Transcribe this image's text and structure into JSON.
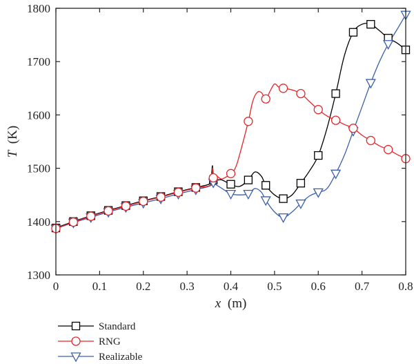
{
  "chart_data": {
    "type": "line",
    "title": "",
    "xlabel": {
      "symbol": "x",
      "unit": "(m)"
    },
    "ylabel": {
      "symbol": "T",
      "unit": "(K)"
    },
    "xlim": [
      0,
      0.8
    ],
    "ylim": [
      1300,
      1800
    ],
    "xticks": [
      0,
      0.1,
      0.2,
      0.3,
      0.4,
      0.5,
      0.6,
      0.7,
      0.8
    ],
    "xtick_labels": [
      "0",
      "0.1",
      "0.2",
      "0.3",
      "0.4",
      "0.5",
      "0.6",
      "0.7",
      "0.8"
    ],
    "yticks": [
      1300,
      1400,
      1500,
      1600,
      1700,
      1800
    ],
    "ytick_labels": [
      "1300",
      "1400",
      "1500",
      "1600",
      "1700",
      "1800"
    ],
    "grid": false,
    "legend_position": "bottom-left",
    "series": [
      {
        "name": "Standard",
        "color": "#000000",
        "marker": "square",
        "curve": [
          [
            0,
            1388
          ],
          [
            0.04,
            1400
          ],
          [
            0.08,
            1411
          ],
          [
            0.12,
            1421
          ],
          [
            0.16,
            1430
          ],
          [
            0.2,
            1439
          ],
          [
            0.24,
            1447
          ],
          [
            0.28,
            1456
          ],
          [
            0.32,
            1464
          ],
          [
            0.35,
            1470
          ],
          [
            0.355,
            1478
          ],
          [
            0.358,
            1505
          ],
          [
            0.36,
            1478
          ],
          [
            0.37,
            1478
          ],
          [
            0.38,
            1478
          ],
          [
            0.4,
            1470
          ],
          [
            0.42,
            1466
          ],
          [
            0.44,
            1478
          ],
          [
            0.455,
            1493
          ],
          [
            0.47,
            1485
          ],
          [
            0.48,
            1468
          ],
          [
            0.5,
            1450
          ],
          [
            0.52,
            1443
          ],
          [
            0.54,
            1450
          ],
          [
            0.56,
            1472
          ],
          [
            0.58,
            1495
          ],
          [
            0.6,
            1524
          ],
          [
            0.62,
            1575
          ],
          [
            0.64,
            1640
          ],
          [
            0.66,
            1712
          ],
          [
            0.68,
            1755
          ],
          [
            0.7,
            1770
          ],
          [
            0.72,
            1770
          ],
          [
            0.74,
            1758
          ],
          [
            0.76,
            1744
          ],
          [
            0.78,
            1735
          ],
          [
            0.8,
            1722
          ]
        ],
        "markers": [
          [
            0,
            1388
          ],
          [
            0.04,
            1400
          ],
          [
            0.08,
            1411
          ],
          [
            0.12,
            1421
          ],
          [
            0.16,
            1430
          ],
          [
            0.2,
            1439
          ],
          [
            0.24,
            1447
          ],
          [
            0.28,
            1456
          ],
          [
            0.32,
            1464
          ],
          [
            0.36,
            1478
          ],
          [
            0.4,
            1470
          ],
          [
            0.44,
            1478
          ],
          [
            0.48,
            1468
          ],
          [
            0.52,
            1443
          ],
          [
            0.56,
            1472
          ],
          [
            0.6,
            1524
          ],
          [
            0.64,
            1640
          ],
          [
            0.68,
            1755
          ],
          [
            0.72,
            1770
          ],
          [
            0.76,
            1744
          ],
          [
            0.8,
            1722
          ]
        ]
      },
      {
        "name": "RNG",
        "color": "#e8242a",
        "marker": "circle",
        "curve": [
          [
            0,
            1387
          ],
          [
            0.04,
            1399
          ],
          [
            0.08,
            1410
          ],
          [
            0.12,
            1420
          ],
          [
            0.16,
            1429
          ],
          [
            0.2,
            1438
          ],
          [
            0.24,
            1446
          ],
          [
            0.28,
            1455
          ],
          [
            0.32,
            1463
          ],
          [
            0.355,
            1470
          ],
          [
            0.358,
            1500
          ],
          [
            0.362,
            1482
          ],
          [
            0.37,
            1484
          ],
          [
            0.38,
            1480
          ],
          [
            0.4,
            1490
          ],
          [
            0.41,
            1500
          ],
          [
            0.42,
            1525
          ],
          [
            0.44,
            1588
          ],
          [
            0.45,
            1625
          ],
          [
            0.46,
            1642
          ],
          [
            0.47,
            1642
          ],
          [
            0.48,
            1630
          ],
          [
            0.49,
            1645
          ],
          [
            0.5,
            1658
          ],
          [
            0.51,
            1652
          ],
          [
            0.52,
            1650
          ],
          [
            0.54,
            1647
          ],
          [
            0.56,
            1640
          ],
          [
            0.58,
            1625
          ],
          [
            0.6,
            1610
          ],
          [
            0.62,
            1598
          ],
          [
            0.64,
            1590
          ],
          [
            0.66,
            1582
          ],
          [
            0.68,
            1575
          ],
          [
            0.7,
            1562
          ],
          [
            0.72,
            1552
          ],
          [
            0.74,
            1542
          ],
          [
            0.76,
            1535
          ],
          [
            0.78,
            1526
          ],
          [
            0.8,
            1518
          ]
        ],
        "markers": [
          [
            0,
            1387
          ],
          [
            0.04,
            1399
          ],
          [
            0.08,
            1410
          ],
          [
            0.12,
            1420
          ],
          [
            0.16,
            1429
          ],
          [
            0.2,
            1438
          ],
          [
            0.24,
            1446
          ],
          [
            0.28,
            1455
          ],
          [
            0.32,
            1463
          ],
          [
            0.36,
            1482
          ],
          [
            0.4,
            1490
          ],
          [
            0.44,
            1588
          ],
          [
            0.48,
            1630
          ],
          [
            0.52,
            1650
          ],
          [
            0.56,
            1640
          ],
          [
            0.6,
            1610
          ],
          [
            0.64,
            1590
          ],
          [
            0.68,
            1575
          ],
          [
            0.72,
            1552
          ],
          [
            0.76,
            1535
          ],
          [
            0.8,
            1518
          ]
        ]
      },
      {
        "name": "Realizable",
        "color": "#3a5fad",
        "marker": "triangle-down",
        "curve": [
          [
            0,
            1387
          ],
          [
            0.04,
            1398
          ],
          [
            0.08,
            1408
          ],
          [
            0.12,
            1418
          ],
          [
            0.16,
            1427
          ],
          [
            0.2,
            1435
          ],
          [
            0.24,
            1443
          ],
          [
            0.28,
            1452
          ],
          [
            0.32,
            1460
          ],
          [
            0.355,
            1468
          ],
          [
            0.358,
            1480
          ],
          [
            0.36,
            1473
          ],
          [
            0.38,
            1462
          ],
          [
            0.4,
            1452
          ],
          [
            0.42,
            1450
          ],
          [
            0.44,
            1452
          ],
          [
            0.455,
            1462
          ],
          [
            0.47,
            1455
          ],
          [
            0.48,
            1440
          ],
          [
            0.5,
            1418
          ],
          [
            0.52,
            1408
          ],
          [
            0.54,
            1418
          ],
          [
            0.56,
            1434
          ],
          [
            0.58,
            1448
          ],
          [
            0.6,
            1455
          ],
          [
            0.62,
            1462
          ],
          [
            0.64,
            1490
          ],
          [
            0.66,
            1525
          ],
          [
            0.68,
            1570
          ],
          [
            0.7,
            1615
          ],
          [
            0.72,
            1660
          ],
          [
            0.74,
            1700
          ],
          [
            0.76,
            1733
          ],
          [
            0.78,
            1760
          ],
          [
            0.8,
            1788
          ]
        ],
        "markers": [
          [
            0,
            1387
          ],
          [
            0.04,
            1398
          ],
          [
            0.08,
            1408
          ],
          [
            0.12,
            1418
          ],
          [
            0.16,
            1427
          ],
          [
            0.2,
            1435
          ],
          [
            0.24,
            1443
          ],
          [
            0.28,
            1452
          ],
          [
            0.32,
            1460
          ],
          [
            0.36,
            1473
          ],
          [
            0.4,
            1452
          ],
          [
            0.44,
            1452
          ],
          [
            0.48,
            1440
          ],
          [
            0.52,
            1408
          ],
          [
            0.56,
            1434
          ],
          [
            0.6,
            1455
          ],
          [
            0.64,
            1490
          ],
          [
            0.68,
            1570
          ],
          [
            0.72,
            1660
          ],
          [
            0.76,
            1733
          ],
          [
            0.8,
            1788
          ]
        ]
      }
    ]
  }
}
